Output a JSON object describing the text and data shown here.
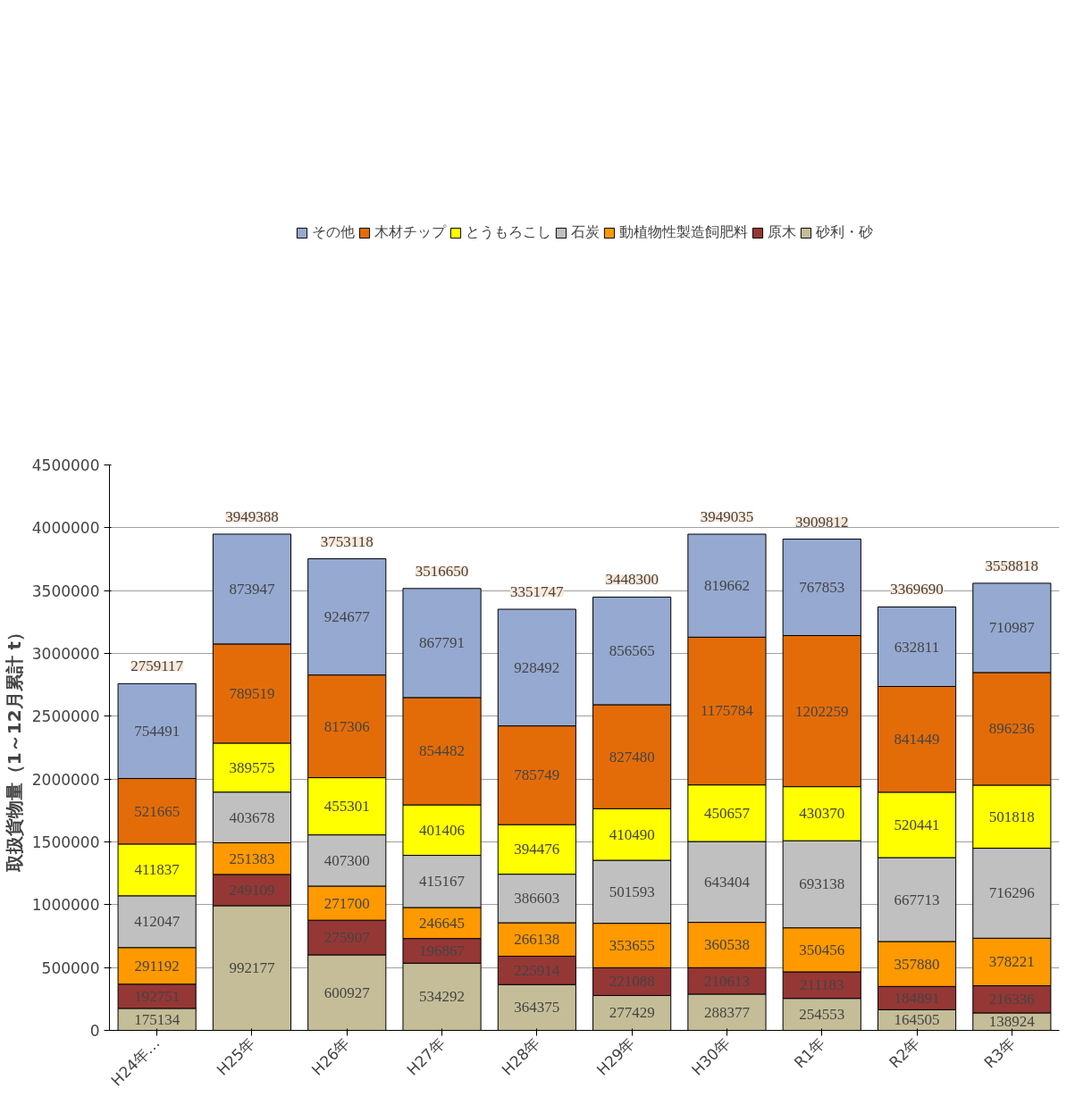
{
  "chart_data": {
    "type": "bar",
    "stacked": true,
    "ylabel": "取扱貨物量（1～12月累計 t）",
    "categories": [
      "H24年…",
      "H25年",
      "H26年",
      "H27年",
      "H28年",
      "H29年",
      "H30年",
      "R1年",
      "R2年",
      "R3年"
    ],
    "series": [
      {
        "name": "砂利・砂",
        "color": "#c4bd97",
        "values": [
          175134,
          992177,
          600927,
          534292,
          364375,
          277429,
          288377,
          254553,
          164505,
          138924
        ]
      },
      {
        "name": "原木",
        "color": "#953735",
        "values": [
          192751,
          249109,
          275907,
          196867,
          225914,
          221088,
          210613,
          211183,
          184891,
          216336
        ]
      },
      {
        "name": "動植物性製造飼肥料",
        "color": "#ff9900",
        "values": [
          291192,
          251383,
          271700,
          246645,
          266138,
          353655,
          360538,
          350456,
          357880,
          378221
        ]
      },
      {
        "name": "石炭",
        "color": "#c0c0c0",
        "values": [
          412047,
          403678,
          407300,
          415167,
          386603,
          501593,
          643404,
          693138,
          667713,
          716296
        ]
      },
      {
        "name": "とうもろこし",
        "color": "#ffff00",
        "values": [
          411837,
          389575,
          455301,
          401406,
          394476,
          410490,
          450657,
          430370,
          520441,
          501818
        ]
      },
      {
        "name": "木材チップ",
        "color": "#e36c09",
        "values": [
          521665,
          789519,
          817306,
          854482,
          785749,
          827480,
          1175784,
          1202259,
          841449,
          896236
        ]
      },
      {
        "name": "その他",
        "color": "#95a9d1",
        "values": [
          754491,
          873947,
          924677,
          867791,
          928492,
          856565,
          819662,
          767853,
          632811,
          710987
        ]
      }
    ],
    "totals": [
      "2759117",
      "3949388",
      "3753118",
      "3516650",
      "3351747",
      "3448300",
      "3949035",
      "3909812",
      "3369690",
      "3558818"
    ],
    "data_labels": true,
    "ylim": [
      0,
      4500000
    ],
    "yticks": [
      0,
      500000,
      1000000,
      1500000,
      2000000,
      2500000,
      3000000,
      3500000,
      4000000,
      4500000
    ],
    "grid": "y",
    "legend": "top"
  }
}
